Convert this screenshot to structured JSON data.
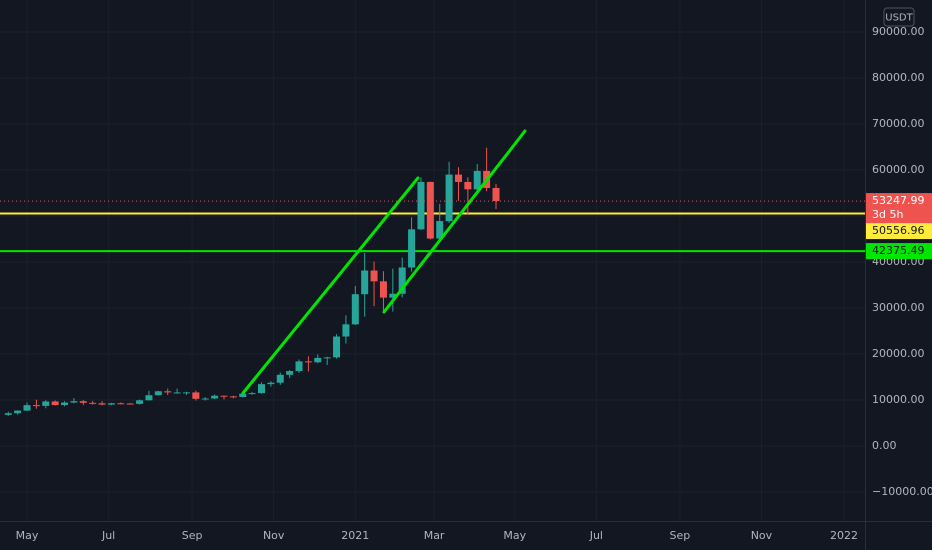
{
  "chart_data": {
    "type": "candlestick",
    "currency": "USDT",
    "up_color": "#26a69a",
    "down_color": "#ef5350",
    "grid": true,
    "x": [
      -2,
      -1,
      0,
      1,
      2,
      3,
      4,
      5,
      6,
      7,
      8,
      9,
      10,
      11,
      12,
      13,
      14,
      15,
      16,
      17,
      18,
      19,
      20,
      21,
      22,
      23,
      24,
      25,
      26,
      27,
      28,
      29,
      30,
      31,
      32,
      33,
      34,
      35,
      36,
      37,
      38,
      39,
      40,
      41,
      42,
      43,
      44,
      45,
      46,
      47,
      48,
      49,
      50
    ],
    "open": [
      6775,
      7120,
      7700,
      8890,
      8720,
      9680,
      8900,
      9450,
      9740,
      9380,
      9290,
      9000,
      9290,
      9230,
      9160,
      9930,
      11040,
      11900,
      11650,
      11650,
      11650,
      10260,
      10330,
      10930,
      10790,
      10660,
      11380,
      11500,
      13450,
      13760,
      15480,
      16300,
      18400,
      18200,
      19150,
      19270,
      23800,
      26450,
      33000,
      38150,
      35800,
      32260,
      33090,
      38800,
      47100,
      57400,
      45100,
      48900,
      59000,
      57400,
      55800,
      59800,
      56100
    ],
    "high": [
      7460,
      7770,
      9470,
      10067,
      9950,
      9890,
      9750,
      10430,
      10000,
      9790,
      9770,
      9390,
      9480,
      9380,
      10100,
      12000,
      12000,
      12480,
      12470,
      11800,
      12050,
      10620,
      11180,
      10980,
      10940,
      11500,
      11720,
      13860,
      14100,
      15970,
      16500,
      18800,
      19500,
      19900,
      19400,
      24300,
      28400,
      34800,
      41950,
      40100,
      38000,
      38550,
      40950,
      49700,
      58400,
      57500,
      52640,
      61800,
      60600,
      58400,
      61300,
      64850,
      57000
    ],
    "low": [
      6555,
      6800,
      7630,
      8100,
      8200,
      8800,
      8630,
      9270,
      8900,
      9000,
      8830,
      8900,
      9050,
      9040,
      9010,
      9920,
      10960,
      11100,
      11370,
      11120,
      9875,
      9880,
      10200,
      10130,
      10370,
      10530,
      11170,
      11400,
      12900,
      13290,
      14800,
      15900,
      16200,
      18000,
      17600,
      19000,
      22300,
      26300,
      28130,
      30400,
      28850,
      29240,
      32300,
      37900,
      47000,
      44900,
      44500,
      48500,
      53300,
      50400,
      54900,
      55400,
      51500
    ],
    "close": [
      7120,
      7700,
      8890,
      8720,
      9680,
      8900,
      9450,
      9740,
      9380,
      9290,
      9000,
      9290,
      9230,
      9160,
      9930,
      11040,
      11900,
      11650,
      11650,
      11650,
      10260,
      10330,
      10930,
      10790,
      10660,
      11380,
      11500,
      13450,
      13760,
      15480,
      16300,
      18400,
      18200,
      19150,
      19270,
      23800,
      26450,
      33000,
      38150,
      35800,
      32260,
      33090,
      38800,
      47100,
      57400,
      45100,
      48900,
      59000,
      57400,
      55800,
      59800,
      56100,
      53247.99
    ],
    "countdown": "3d 5h",
    "hlines": [
      {
        "value": 50556.96,
        "color": "#ffeb3b"
      },
      {
        "value": 42375.49,
        "color": "#00e600"
      }
    ],
    "trendlines": [
      {
        "color": "#00e600",
        "x": [
          23.03,
          41.68
        ],
        "y": [
          11522,
          58261
        ]
      },
      {
        "color": "#00e600",
        "x": [
          38.06,
          53.09
        ],
        "y": [
          29130,
          68478
        ]
      }
    ],
    "xlim": [
      -2.88,
      89.34
    ],
    "ylim": [
      -16303,
      96957
    ],
    "xticks": [
      {
        "value": 0,
        "label": "May"
      },
      {
        "value": 8.7,
        "label": "Jul"
      },
      {
        "value": 17.6,
        "label": "Sep"
      },
      {
        "value": 26.3,
        "label": "Nov"
      },
      {
        "value": 35.0,
        "label": "2021"
      },
      {
        "value": 43.4,
        "label": "Mar"
      },
      {
        "value": 52.0,
        "label": "May"
      },
      {
        "value": 60.7,
        "label": "Jul"
      },
      {
        "value": 69.6,
        "label": "Sep"
      },
      {
        "value": 78.3,
        "label": "Nov"
      },
      {
        "value": 87.1,
        "label": "2022"
      }
    ],
    "yticks": [
      {
        "value": -10000,
        "label": "−10000.00"
      },
      {
        "value": 0,
        "label": "0.00"
      },
      {
        "value": 10000,
        "label": "10000.00"
      },
      {
        "value": 20000,
        "label": "20000.00"
      },
      {
        "value": 30000,
        "label": "30000.00"
      },
      {
        "value": 40000,
        "label": "40000.00"
      },
      {
        "value": 50000,
        "label": "50000.00"
      },
      {
        "value": 60000,
        "label": "60000.00"
      },
      {
        "value": 70000,
        "label": "70000.00"
      },
      {
        "value": 80000,
        "label": "80000.00"
      },
      {
        "value": 90000,
        "label": "90000.00"
      }
    ]
  }
}
